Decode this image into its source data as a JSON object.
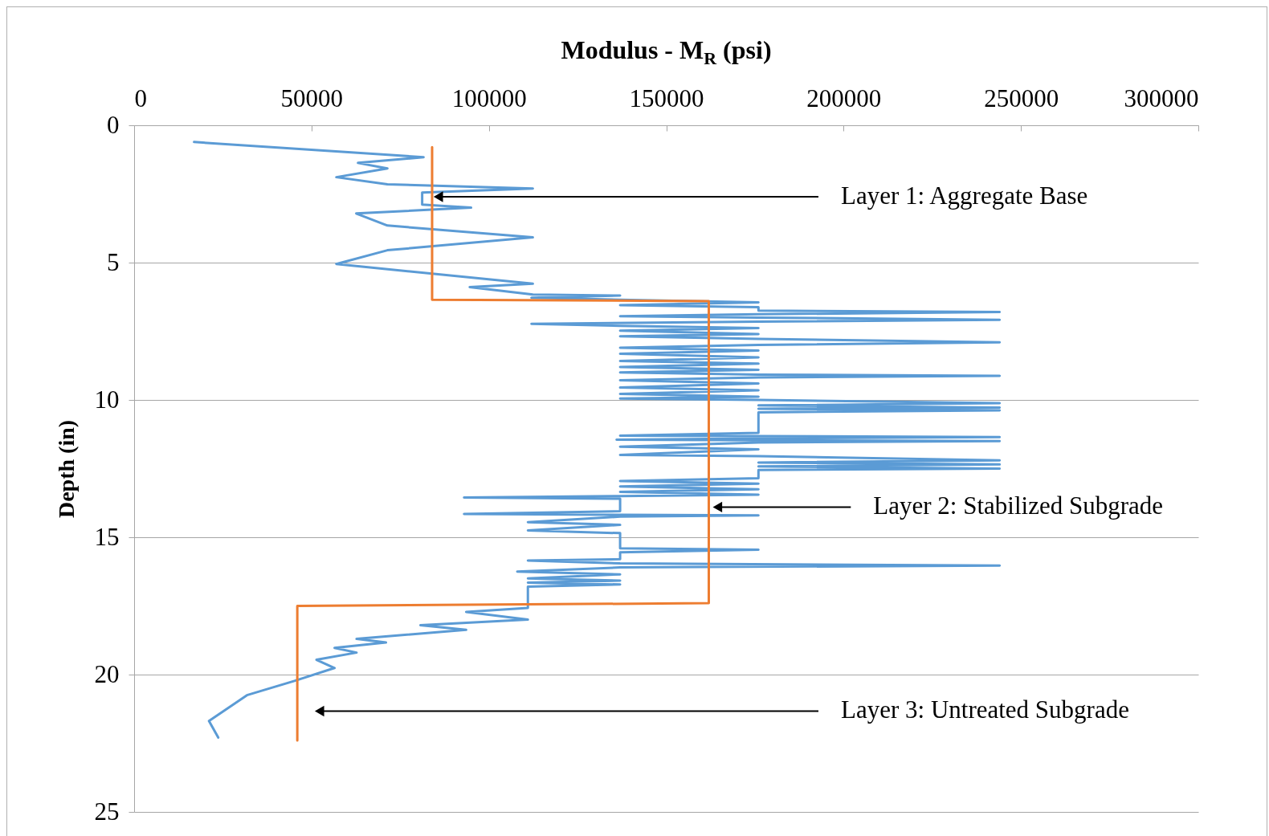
{
  "chart_data": {
    "type": "line",
    "xlabel": "Modulus - M$_{R}$ (psi)",
    "ylabel": "Depth (in)",
    "xlim": [
      0,
      300000
    ],
    "xticks": [
      0,
      50000,
      100000,
      150000,
      200000,
      250000,
      300000
    ],
    "ylim": [
      25,
      0
    ],
    "yticks": [
      0,
      5,
      10,
      15,
      20,
      25
    ],
    "grid": "y",
    "marker": "none",
    "line_style": "solid",
    "series": [
      {
        "color": "#5b9bd5",
        "x": [
          16900,
          81600,
          63100,
          71400,
          57000,
          71400,
          112400,
          81200,
          81200,
          95000,
          62600,
          71400,
          112400,
          71400,
          57000,
          112400,
          94600,
          112400,
          137000,
          112000,
          137000,
          176000,
          137000,
          176000,
          176000,
          244000,
          176000,
          137000,
          176000,
          244000,
          176000,
          112000,
          137000,
          176000,
          137000,
          176000,
          137000,
          176000,
          244000,
          176000,
          137000,
          176000,
          137000,
          176000,
          137000,
          176000,
          137000,
          176000,
          137000,
          176000,
          244000,
          176000,
          137000,
          176000,
          137000,
          176000,
          137000,
          176000,
          137000,
          176000,
          244000,
          176000,
          244000,
          176000,
          244000,
          176000,
          176000,
          137000,
          244000,
          176000,
          136000,
          244000,
          176000,
          137000,
          176000,
          137000,
          176000,
          244000,
          176000,
          244000,
          176000,
          244000,
          176000,
          176000,
          137000,
          176000,
          137000,
          176000,
          137000,
          176000,
          137000,
          93000,
          137000,
          137000,
          93000,
          137000,
          176000,
          137000,
          111000,
          137000,
          111000,
          137000,
          137000,
          176000,
          137000,
          137000,
          111000,
          137000,
          244000,
          137000,
          108000,
          137000,
          111000,
          137000,
          111000,
          137000,
          111000,
          111000,
          111000,
          93600,
          111000,
          80700,
          93600,
          62700,
          71000,
          56500,
          62700,
          51400,
          56500,
          45200,
          31800,
          21100,
          23700
        ],
        "values": [
          0.61,
          1.16,
          1.37,
          1.57,
          1.89,
          2.15,
          2.3,
          2.45,
          2.89,
          3.0,
          3.21,
          3.65,
          4.08,
          4.55,
          5.05,
          5.77,
          5.89,
          6.16,
          6.2,
          6.28,
          6.35,
          6.45,
          6.55,
          6.62,
          6.75,
          6.8,
          6.88,
          6.95,
          7.0,
          7.08,
          7.15,
          7.23,
          7.3,
          7.38,
          7.48,
          7.6,
          7.68,
          7.78,
          7.9,
          8.0,
          8.1,
          8.2,
          8.32,
          8.45,
          8.58,
          8.68,
          8.8,
          8.9,
          9.0,
          9.08,
          9.12,
          9.18,
          9.28,
          9.4,
          9.55,
          9.65,
          9.78,
          9.88,
          9.95,
          10.0,
          10.12,
          10.2,
          10.28,
          10.32,
          10.38,
          10.45,
          11.2,
          11.3,
          11.35,
          11.4,
          11.45,
          11.5,
          11.55,
          11.7,
          11.8,
          12.0,
          12.05,
          12.2,
          12.28,
          12.35,
          12.42,
          12.5,
          12.55,
          12.85,
          12.95,
          13.05,
          13.15,
          13.25,
          13.35,
          13.45,
          13.5,
          13.55,
          13.6,
          14.05,
          14.15,
          14.18,
          14.2,
          14.25,
          14.45,
          14.55,
          14.75,
          14.85,
          15.4,
          15.45,
          15.55,
          15.8,
          15.85,
          15.95,
          16.03,
          16.1,
          16.25,
          16.35,
          16.5,
          16.58,
          16.65,
          16.72,
          16.8,
          17.35,
          17.57,
          17.72,
          18.0,
          18.2,
          18.37,
          18.7,
          18.83,
          19.03,
          19.2,
          19.46,
          19.76,
          20.23,
          20.75,
          21.69,
          22.29
        ]
      },
      {
        "color": "#ed7d31",
        "x": [
          84000,
          84000,
          162000,
          162000,
          46000,
          46000
        ],
        "values": [
          0.8,
          6.35,
          6.4,
          17.4,
          17.5,
          22.4
        ]
      }
    ],
    "annotations": [
      {
        "text": "Layer 1: Aggregate Base",
        "x": 85300,
        "y": 2.6
      },
      {
        "text": "Layer 2: Stabilized Subgrade",
        "x": 164000,
        "y": 13.9
      },
      {
        "text": "Layer 3: Untreated Subgrade",
        "x": 51800,
        "y": 21.33
      }
    ]
  }
}
